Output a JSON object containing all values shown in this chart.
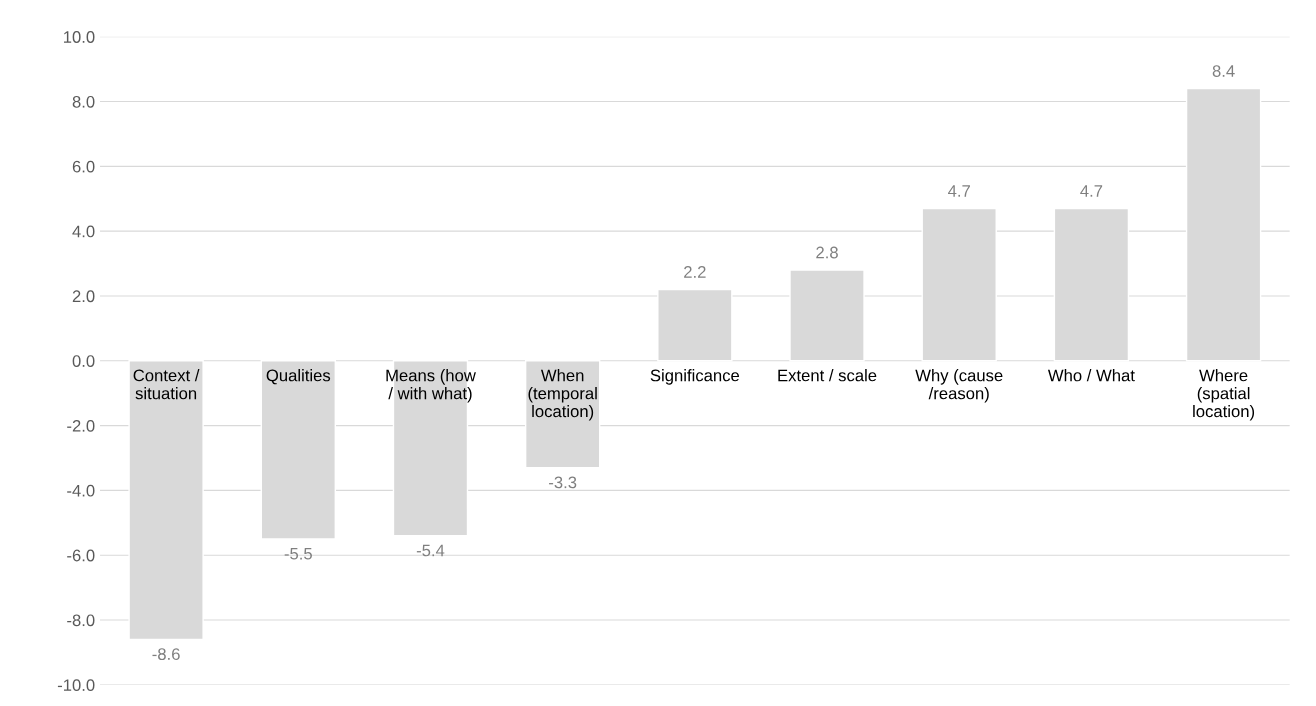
{
  "chart_data": {
    "type": "bar",
    "categories": [
      "Context /\nsituation",
      "Qualities",
      "Means (how\n/ with what)",
      "When\n(temporal\nlocation)",
      "Significance",
      "Extent / scale",
      "Why (cause\n/reason)",
      "Who / What",
      "Where\n(spatial\nlocation)"
    ],
    "values": [
      -8.6,
      -5.5,
      -5.4,
      -3.3,
      2.2,
      2.8,
      4.7,
      4.7,
      8.4
    ],
    "color": "#d9d9d9",
    "data_labels": true,
    "ylim": [
      -10,
      10
    ],
    "yticks": [
      {
        "value": -10,
        "label": "-10.0"
      },
      {
        "value": -8,
        "label": "-8.0"
      },
      {
        "value": -6,
        "label": "-6.0"
      },
      {
        "value": -4,
        "label": "-4.0"
      },
      {
        "value": -2,
        "label": "-2.0"
      },
      {
        "value": 0,
        "label": "0.0"
      },
      {
        "value": 2,
        "label": "2.0"
      },
      {
        "value": 4,
        "label": "4.0"
      },
      {
        "value": 6,
        "label": "6.0"
      },
      {
        "value": 8,
        "label": "8.0"
      },
      {
        "value": 10,
        "label": "10.0"
      }
    ],
    "grid": "y"
  }
}
